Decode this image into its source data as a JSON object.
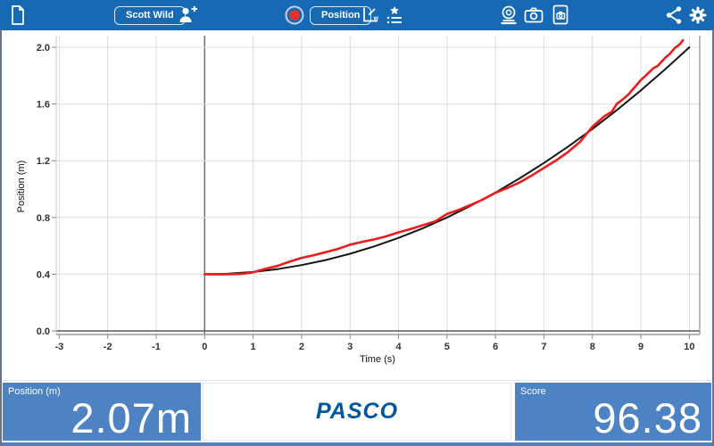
{
  "toolbar": {
    "bg_color": "#1769b4",
    "user_button_label": "Scott Wild",
    "mode_button_label": "Position",
    "icons": [
      "document-icon",
      "person-add-icon",
      "record-button-icon",
      "scale-to-fit-icon",
      "experiment-list-icon",
      "sensor-icon",
      "camera-icon",
      "journal-snapshot-icon",
      "share-icon",
      "settings-gear-icon"
    ]
  },
  "meters": {
    "position": {
      "label": "Position (m)",
      "value": "2.07m"
    },
    "logo_text": "PASCO",
    "score": {
      "label": "Score",
      "value": "96.38"
    }
  },
  "colors": {
    "toolbar_bg": "#1769b4",
    "meter_bg": "#4d82c3",
    "logo_blue": "#00579e",
    "record_red": "#e5312b",
    "recorded_line": "#ea1c1c",
    "target_line": "#141414"
  },
  "chart_data": {
    "type": "line",
    "title": "",
    "xlabel": "Time (s)",
    "ylabel": "Position (m)",
    "xlim": [
      -3.05,
      10.2
    ],
    "ylim": [
      0,
      2.08
    ],
    "xticks": [
      -3,
      -2,
      -1,
      0,
      1,
      2,
      3,
      4,
      5,
      6,
      7,
      8,
      9,
      10
    ],
    "xtick_labels": [
      "-3",
      "-2",
      "-1",
      "0",
      "1",
      "2",
      "3",
      "4",
      "5",
      "6",
      "7",
      "8",
      "9",
      "10"
    ],
    "yticks": [
      0,
      0.4,
      0.8,
      1.2,
      1.6,
      2.0
    ],
    "ytick_labels": [
      "0.0",
      "0.4",
      "0.8",
      "1.2",
      "1.6",
      "2.0"
    ],
    "grid": true,
    "legend": "none",
    "series": [
      {
        "name": "target-path",
        "color": "#141414",
        "width": 2,
        "points": [
          [
            0,
            0.4
          ],
          [
            0.5,
            0.404
          ],
          [
            1,
            0.416
          ],
          [
            1.5,
            0.436
          ],
          [
            2,
            0.464
          ],
          [
            2.5,
            0.5
          ],
          [
            3,
            0.544
          ],
          [
            3.5,
            0.596
          ],
          [
            4,
            0.656
          ],
          [
            4.5,
            0.724
          ],
          [
            5,
            0.8
          ],
          [
            5.5,
            0.884
          ],
          [
            6,
            0.976
          ],
          [
            6.5,
            1.076
          ],
          [
            7,
            1.184
          ],
          [
            7.5,
            1.3
          ],
          [
            8,
            1.424
          ],
          [
            8.5,
            1.556
          ],
          [
            9,
            1.696
          ],
          [
            9.5,
            1.844
          ],
          [
            10,
            2.0
          ]
        ]
      },
      {
        "name": "recorded-position",
        "color": "#ea1c1c",
        "width": 2.6,
        "points": [
          [
            0,
            0.4
          ],
          [
            0.25,
            0.399
          ],
          [
            0.5,
            0.4
          ],
          [
            0.75,
            0.402
          ],
          [
            1,
            0.413
          ],
          [
            1.25,
            0.438
          ],
          [
            1.5,
            0.458
          ],
          [
            1.75,
            0.488
          ],
          [
            2,
            0.515
          ],
          [
            2.25,
            0.534
          ],
          [
            2.5,
            0.556
          ],
          [
            2.75,
            0.578
          ],
          [
            3,
            0.608
          ],
          [
            3.25,
            0.628
          ],
          [
            3.5,
            0.645
          ],
          [
            3.75,
            0.667
          ],
          [
            4,
            0.695
          ],
          [
            4.25,
            0.718
          ],
          [
            4.5,
            0.745
          ],
          [
            4.75,
            0.772
          ],
          [
            5,
            0.825
          ],
          [
            5.25,
            0.855
          ],
          [
            5.5,
            0.89
          ],
          [
            5.75,
            0.928
          ],
          [
            6,
            0.974
          ],
          [
            6.25,
            1.008
          ],
          [
            6.5,
            1.048
          ],
          [
            6.75,
            1.096
          ],
          [
            7,
            1.15
          ],
          [
            7.25,
            1.202
          ],
          [
            7.5,
            1.262
          ],
          [
            7.75,
            1.335
          ],
          [
            8,
            1.44
          ],
          [
            8.25,
            1.515
          ],
          [
            8.4,
            1.545
          ],
          [
            8.5,
            1.6
          ],
          [
            8.6,
            1.625
          ],
          [
            8.75,
            1.67
          ],
          [
            9,
            1.77
          ],
          [
            9.1,
            1.8
          ],
          [
            9.25,
            1.85
          ],
          [
            9.35,
            1.87
          ],
          [
            9.5,
            1.925
          ],
          [
            9.6,
            1.955
          ],
          [
            9.7,
            1.995
          ],
          [
            9.8,
            2.02
          ],
          [
            9.87,
            2.05
          ]
        ]
      }
    ]
  }
}
